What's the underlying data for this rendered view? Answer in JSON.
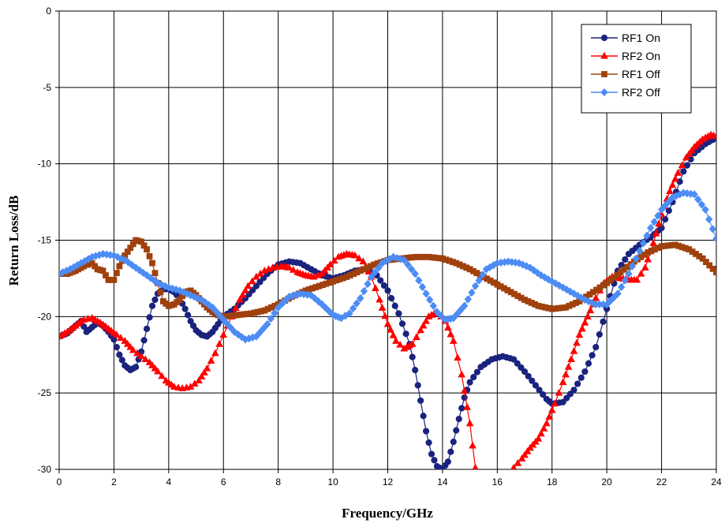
{
  "chart_data": {
    "type": "line",
    "title": "",
    "xlabel": "Frequency/GHz",
    "ylabel": "Return Loss/dB",
    "xlim": [
      0,
      24
    ],
    "ylim": [
      -30,
      0
    ],
    "xticks": [
      0,
      2,
      4,
      6,
      8,
      10,
      12,
      14,
      16,
      18,
      20,
      22,
      24
    ],
    "yticks": [
      0,
      -5,
      -10,
      -15,
      -20,
      -25,
      -30
    ],
    "grid": true,
    "legend_position": "top-right",
    "series": [
      {
        "name": "RF1 On",
        "color": "#1a237e",
        "marker": "circle",
        "points": [
          [
            0,
            -21.3
          ],
          [
            0.3,
            -21.1
          ],
          [
            0.6,
            -20.6
          ],
          [
            0.8,
            -20.3
          ],
          [
            1.0,
            -21.0
          ],
          [
            1.2,
            -20.7
          ],
          [
            1.4,
            -20.4
          ],
          [
            1.6,
            -20.6
          ],
          [
            1.8,
            -21.0
          ],
          [
            2.0,
            -21.5
          ],
          [
            2.2,
            -22.5
          ],
          [
            2.4,
            -23.2
          ],
          [
            2.6,
            -23.5
          ],
          [
            2.8,
            -23.3
          ],
          [
            3.0,
            -22.3
          ],
          [
            3.2,
            -20.8
          ],
          [
            3.4,
            -19.3
          ],
          [
            3.6,
            -18.5
          ],
          [
            3.8,
            -18.2
          ],
          [
            4.0,
            -18.2
          ],
          [
            4.2,
            -18.4
          ],
          [
            4.4,
            -18.8
          ],
          [
            4.6,
            -19.5
          ],
          [
            4.8,
            -20.3
          ],
          [
            5.0,
            -20.9
          ],
          [
            5.2,
            -21.2
          ],
          [
            5.4,
            -21.3
          ],
          [
            5.6,
            -21.0
          ],
          [
            5.8,
            -20.5
          ],
          [
            6.0,
            -20.0
          ],
          [
            6.4,
            -19.5
          ],
          [
            6.8,
            -18.8
          ],
          [
            7.2,
            -18.0
          ],
          [
            7.6,
            -17.2
          ],
          [
            8.0,
            -16.6
          ],
          [
            8.4,
            -16.4
          ],
          [
            8.8,
            -16.5
          ],
          [
            9.2,
            -16.9
          ],
          [
            9.6,
            -17.3
          ],
          [
            10.0,
            -17.5
          ],
          [
            10.4,
            -17.3
          ],
          [
            10.8,
            -17.0
          ],
          [
            11.2,
            -16.9
          ],
          [
            11.6,
            -17.3
          ],
          [
            12.0,
            -18.3
          ],
          [
            12.4,
            -19.8
          ],
          [
            12.8,
            -21.8
          ],
          [
            13.0,
            -23.5
          ],
          [
            13.2,
            -25.5
          ],
          [
            13.4,
            -27.5
          ],
          [
            13.6,
            -29.0
          ],
          [
            13.8,
            -29.8
          ],
          [
            14.0,
            -30.0
          ],
          [
            14.2,
            -29.5
          ],
          [
            14.4,
            -28.2
          ],
          [
            14.6,
            -26.7
          ],
          [
            14.8,
            -25.3
          ],
          [
            15.0,
            -24.3
          ],
          [
            15.4,
            -23.3
          ],
          [
            15.8,
            -22.8
          ],
          [
            16.2,
            -22.6
          ],
          [
            16.6,
            -22.8
          ],
          [
            17.0,
            -23.6
          ],
          [
            17.4,
            -24.5
          ],
          [
            17.8,
            -25.4
          ],
          [
            18.0,
            -25.7
          ],
          [
            18.4,
            -25.6
          ],
          [
            18.8,
            -24.8
          ],
          [
            19.2,
            -23.6
          ],
          [
            19.6,
            -22.0
          ],
          [
            20.0,
            -19.5
          ],
          [
            20.4,
            -17.0
          ],
          [
            20.8,
            -15.9
          ],
          [
            21.2,
            -15.3
          ],
          [
            21.6,
            -14.8
          ],
          [
            22.0,
            -14.2
          ],
          [
            22.4,
            -12.5
          ],
          [
            22.8,
            -10.5
          ],
          [
            23.2,
            -9.3
          ],
          [
            23.6,
            -8.7
          ],
          [
            24.0,
            -8.3
          ]
        ]
      },
      {
        "name": "RF2 On",
        "color": "#ff0000",
        "marker": "triangle",
        "points": [
          [
            0,
            -21.3
          ],
          [
            0.3,
            -21.0
          ],
          [
            0.6,
            -20.6
          ],
          [
            0.9,
            -20.2
          ],
          [
            1.2,
            -20.1
          ],
          [
            1.5,
            -20.4
          ],
          [
            1.8,
            -20.8
          ],
          [
            2.1,
            -21.2
          ],
          [
            2.4,
            -21.6
          ],
          [
            2.7,
            -22.2
          ],
          [
            3.0,
            -22.6
          ],
          [
            3.3,
            -23.0
          ],
          [
            3.6,
            -23.6
          ],
          [
            3.9,
            -24.2
          ],
          [
            4.2,
            -24.6
          ],
          [
            4.5,
            -24.7
          ],
          [
            4.8,
            -24.6
          ],
          [
            5.1,
            -24.2
          ],
          [
            5.4,
            -23.4
          ],
          [
            5.7,
            -22.4
          ],
          [
            6.0,
            -21.2
          ],
          [
            6.3,
            -20.0
          ],
          [
            6.6,
            -18.9
          ],
          [
            6.9,
            -18.0
          ],
          [
            7.2,
            -17.4
          ],
          [
            7.5,
            -17.0
          ],
          [
            7.8,
            -16.8
          ],
          [
            8.1,
            -16.7
          ],
          [
            8.4,
            -16.8
          ],
          [
            8.7,
            -17.1
          ],
          [
            9.0,
            -17.3
          ],
          [
            9.3,
            -17.4
          ],
          [
            9.6,
            -17.2
          ],
          [
            9.9,
            -16.6
          ],
          [
            10.2,
            -16.1
          ],
          [
            10.5,
            -15.9
          ],
          [
            10.8,
            -16.0
          ],
          [
            11.1,
            -16.4
          ],
          [
            11.4,
            -17.4
          ],
          [
            11.7,
            -18.9
          ],
          [
            12.0,
            -20.5
          ],
          [
            12.3,
            -21.6
          ],
          [
            12.6,
            -22.1
          ],
          [
            12.9,
            -21.8
          ],
          [
            13.2,
            -20.9
          ],
          [
            13.5,
            -20.0
          ],
          [
            13.8,
            -19.7
          ],
          [
            14.1,
            -20.3
          ],
          [
            14.4,
            -21.6
          ],
          [
            14.7,
            -23.8
          ],
          [
            15.0,
            -27.0
          ],
          [
            15.2,
            -29.9
          ],
          null,
          [
            16.6,
            -29.9
          ],
          [
            16.9,
            -29.3
          ],
          [
            17.2,
            -28.6
          ],
          [
            17.5,
            -28.0
          ],
          [
            17.8,
            -27.0
          ],
          [
            18.1,
            -25.7
          ],
          [
            18.4,
            -24.3
          ],
          [
            18.7,
            -22.8
          ],
          [
            19.0,
            -21.2
          ],
          [
            19.3,
            -20.0
          ],
          [
            19.6,
            -18.8
          ],
          [
            19.9,
            -17.8
          ],
          [
            20.2,
            -17.4
          ],
          [
            20.5,
            -17.5
          ],
          [
            20.8,
            -17.6
          ],
          [
            21.1,
            -17.6
          ],
          [
            21.4,
            -16.8
          ],
          [
            21.7,
            -15.2
          ],
          [
            22.0,
            -13.3
          ],
          [
            22.3,
            -11.8
          ],
          [
            22.6,
            -10.6
          ],
          [
            22.9,
            -9.6
          ],
          [
            23.2,
            -8.9
          ],
          [
            23.5,
            -8.4
          ],
          [
            23.8,
            -8.1
          ],
          [
            24.0,
            -8.2
          ]
        ]
      },
      {
        "name": "RF1 Off",
        "color": "#a0410d",
        "marker": "square",
        "points": [
          [
            0,
            -17.2
          ],
          [
            0.3,
            -17.2
          ],
          [
            0.6,
            -17.0
          ],
          [
            0.9,
            -16.7
          ],
          [
            1.2,
            -16.5
          ],
          [
            1.4,
            -16.9
          ],
          [
            1.6,
            -17.0
          ],
          [
            1.8,
            -17.6
          ],
          [
            2.0,
            -17.6
          ],
          [
            2.2,
            -16.7
          ],
          [
            2.4,
            -16.0
          ],
          [
            2.6,
            -15.5
          ],
          [
            2.8,
            -15.0
          ],
          [
            3.0,
            -15.1
          ],
          [
            3.2,
            -15.6
          ],
          [
            3.4,
            -16.5
          ],
          [
            3.6,
            -17.8
          ],
          [
            3.8,
            -19.0
          ],
          [
            4.0,
            -19.3
          ],
          [
            4.2,
            -19.2
          ],
          [
            4.4,
            -18.9
          ],
          [
            4.6,
            -18.4
          ],
          [
            4.8,
            -18.3
          ],
          [
            5.0,
            -18.6
          ],
          [
            5.2,
            -19.0
          ],
          [
            5.4,
            -19.4
          ],
          [
            5.6,
            -19.7
          ],
          [
            5.8,
            -19.9
          ],
          [
            6.0,
            -20.0
          ],
          [
            6.5,
            -19.9
          ],
          [
            7.0,
            -19.8
          ],
          [
            7.5,
            -19.6
          ],
          [
            8.0,
            -19.2
          ],
          [
            8.5,
            -18.7
          ],
          [
            9.0,
            -18.3
          ],
          [
            9.5,
            -18.0
          ],
          [
            10.0,
            -17.7
          ],
          [
            10.5,
            -17.4
          ],
          [
            11.0,
            -17.0
          ],
          [
            11.5,
            -16.6
          ],
          [
            12.0,
            -16.3
          ],
          [
            12.5,
            -16.2
          ],
          [
            13.0,
            -16.1
          ],
          [
            13.5,
            -16.1
          ],
          [
            14.0,
            -16.2
          ],
          [
            14.5,
            -16.5
          ],
          [
            15.0,
            -16.9
          ],
          [
            15.5,
            -17.4
          ],
          [
            16.0,
            -17.9
          ],
          [
            16.5,
            -18.4
          ],
          [
            17.0,
            -18.9
          ],
          [
            17.5,
            -19.3
          ],
          [
            18.0,
            -19.5
          ],
          [
            18.5,
            -19.4
          ],
          [
            19.0,
            -19.0
          ],
          [
            19.5,
            -18.4
          ],
          [
            20.0,
            -17.8
          ],
          [
            20.5,
            -17.1
          ],
          [
            21.0,
            -16.4
          ],
          [
            21.5,
            -15.8
          ],
          [
            22.0,
            -15.4
          ],
          [
            22.5,
            -15.3
          ],
          [
            23.0,
            -15.6
          ],
          [
            23.5,
            -16.2
          ],
          [
            24.0,
            -17.1
          ]
        ]
      },
      {
        "name": "RF2 Off",
        "color": "#4d8cf5",
        "marker": "diamond",
        "points": [
          [
            0,
            -17.2
          ],
          [
            0.4,
            -16.9
          ],
          [
            0.8,
            -16.5
          ],
          [
            1.2,
            -16.1
          ],
          [
            1.6,
            -15.9
          ],
          [
            2.0,
            -16.0
          ],
          [
            2.4,
            -16.3
          ],
          [
            2.8,
            -16.8
          ],
          [
            3.2,
            -17.3
          ],
          [
            3.6,
            -17.8
          ],
          [
            4.0,
            -18.1
          ],
          [
            4.4,
            -18.3
          ],
          [
            4.8,
            -18.6
          ],
          [
            5.2,
            -18.9
          ],
          [
            5.6,
            -19.4
          ],
          [
            6.0,
            -20.2
          ],
          [
            6.4,
            -21.0
          ],
          [
            6.8,
            -21.5
          ],
          [
            7.2,
            -21.3
          ],
          [
            7.6,
            -20.5
          ],
          [
            8.0,
            -19.4
          ],
          [
            8.4,
            -18.7
          ],
          [
            8.8,
            -18.5
          ],
          [
            9.2,
            -18.6
          ],
          [
            9.6,
            -19.2
          ],
          [
            10.0,
            -19.9
          ],
          [
            10.3,
            -20.1
          ],
          [
            10.6,
            -19.8
          ],
          [
            11.0,
            -18.8
          ],
          [
            11.4,
            -17.4
          ],
          [
            11.8,
            -16.5
          ],
          [
            12.2,
            -16.1
          ],
          [
            12.6,
            -16.3
          ],
          [
            13.0,
            -17.2
          ],
          [
            13.4,
            -18.5
          ],
          [
            13.8,
            -19.7
          ],
          [
            14.1,
            -20.2
          ],
          [
            14.4,
            -20.1
          ],
          [
            14.8,
            -19.3
          ],
          [
            15.2,
            -18.0
          ],
          [
            15.6,
            -16.9
          ],
          [
            16.0,
            -16.5
          ],
          [
            16.4,
            -16.4
          ],
          [
            16.8,
            -16.5
          ],
          [
            17.2,
            -16.8
          ],
          [
            17.6,
            -17.3
          ],
          [
            18.0,
            -17.7
          ],
          [
            18.4,
            -18.1
          ],
          [
            18.8,
            -18.5
          ],
          [
            19.2,
            -18.9
          ],
          [
            19.6,
            -19.2
          ],
          [
            20.0,
            -19.2
          ],
          [
            20.4,
            -18.5
          ],
          [
            20.8,
            -17.2
          ],
          [
            21.2,
            -15.7
          ],
          [
            21.6,
            -14.2
          ],
          [
            22.0,
            -13.0
          ],
          [
            22.4,
            -12.2
          ],
          [
            22.8,
            -11.9
          ],
          [
            23.2,
            -12.0
          ],
          [
            23.6,
            -13.0
          ],
          [
            24.0,
            -14.9
          ]
        ]
      }
    ]
  }
}
